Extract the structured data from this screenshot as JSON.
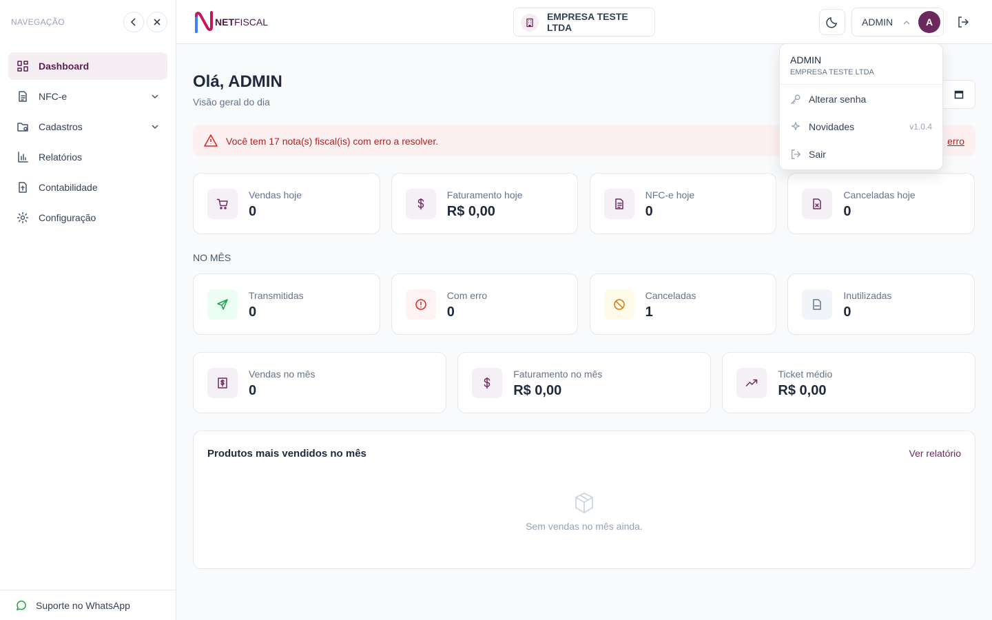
{
  "sidebar": {
    "title": "NAVEGAÇÃO",
    "items": [
      {
        "label": "Dashboard",
        "active": true
      },
      {
        "label": "NFC-e",
        "expandable": true
      },
      {
        "label": "Cadastros",
        "expandable": true
      },
      {
        "label": "Relatórios"
      },
      {
        "label": "Contabilidade"
      },
      {
        "label": "Configuração"
      }
    ],
    "support": "Suporte no WhatsApp"
  },
  "header": {
    "logo_bold": "NET",
    "logo_rest": "FISCAL",
    "company": "EMPRESA TESTE LTDA",
    "user": "ADMIN",
    "avatar": "A"
  },
  "menu": {
    "name": "ADMIN",
    "company": "EMPRESA TESTE LTDA",
    "items": [
      {
        "label": "Alterar senha"
      },
      {
        "label": "Novidades",
        "badge": "v1.0.4"
      },
      {
        "label": "Sair"
      }
    ]
  },
  "page": {
    "greeting": "Olá, ADMIN",
    "subtitle": "Visão geral do dia",
    "alert": "Você tem 17 nota(s) fiscal(is) com erro a resolver.",
    "alert_link": "erro",
    "today": [
      {
        "label": "Vendas hoje",
        "value": 0
      },
      {
        "label": "Faturamento hoje",
        "value": "R$ 0,00"
      },
      {
        "label": "NFC-e hoje",
        "value": 0
      },
      {
        "label": "Canceladas hoje",
        "value": 0
      }
    ],
    "month_title": "NO MÊS",
    "month": [
      {
        "label": "Transmitidas",
        "value": 0
      },
      {
        "label": "Com erro",
        "value": 0
      },
      {
        "label": "Canceladas",
        "value": 1
      },
      {
        "label": "Inutilizadas",
        "value": 0
      }
    ],
    "summary": [
      {
        "label": "Vendas no mês",
        "value": 0
      },
      {
        "label": "Faturamento no mês",
        "value": "R$ 0,00"
      },
      {
        "label": "Ticket médio",
        "value": "R$ 0,00"
      }
    ],
    "products": {
      "title": "Produtos mais vendidos no mês",
      "link": "Ver relatório",
      "empty": "Sem vendas no mês ainda."
    }
  }
}
